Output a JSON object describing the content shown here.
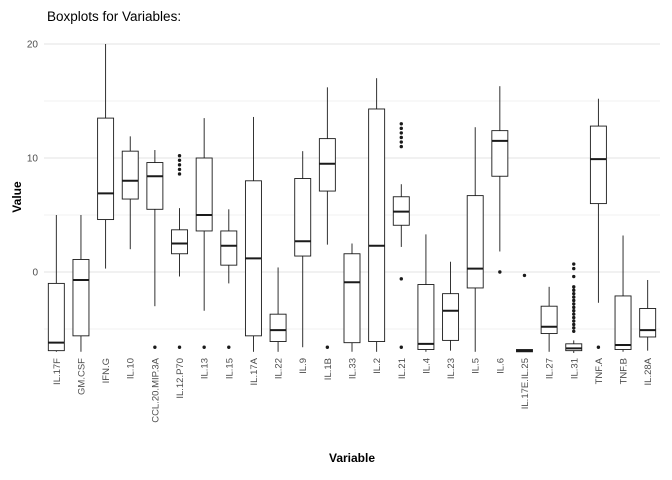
{
  "title": "Boxplots for Variables:",
  "colors": {
    "background": "#ffffff",
    "box": "#1a1a1a",
    "box_fill": "#ffffff",
    "grid_major": "#e3e3e3",
    "grid_minor": "#f1f1f1",
    "axis_text": "#4d4d4d",
    "title_text": "#000000"
  },
  "chart_data": {
    "type": "boxplot",
    "title": "Boxplots for Variables:",
    "xlabel": "Variable",
    "ylabel": "Value",
    "ylim": [
      -7.2,
      20.8
    ],
    "yticks": [
      0,
      10,
      20
    ],
    "minor_gridlines": [
      -5,
      5,
      15
    ],
    "grid": true,
    "legend": "none",
    "categories": [
      "IL.17F",
      "GM.CSF",
      "IFN.G",
      "IL.10",
      "CCL.20.MIP.3A",
      "IL.12.P70",
      "IL.13",
      "IL.15",
      "IL.17A",
      "IL.22",
      "IL.9",
      "IL.1B",
      "IL.33",
      "IL.2",
      "IL.21",
      "IL.4",
      "IL.23",
      "IL.5",
      "IL.6",
      "IL.17E.IL.25",
      "IL.27",
      "IL.31",
      "TNF.A",
      "TNF.B",
      "IL.28A"
    ],
    "boxes": [
      {
        "label": "IL.17F",
        "low": -7.0,
        "q1": -6.9,
        "median": -6.2,
        "q3": -1.0,
        "high": 5.0,
        "outliers": []
      },
      {
        "label": "GM.CSF",
        "low": -7.0,
        "q1": -5.6,
        "median": -0.7,
        "q3": 1.1,
        "high": 5.0,
        "outliers": []
      },
      {
        "label": "IFN.G",
        "low": 0.3,
        "q1": 4.6,
        "median": 6.9,
        "q3": 13.5,
        "high": 20.0,
        "outliers": []
      },
      {
        "label": "IL.10",
        "low": 2.0,
        "q1": 6.4,
        "median": 8.0,
        "q3": 10.6,
        "high": 11.9,
        "outliers": []
      },
      {
        "label": "CCL.20.MIP.3A",
        "low": -3.0,
        "q1": 5.5,
        "median": 8.4,
        "q3": 9.6,
        "high": 10.7,
        "outliers": [
          -6.6
        ]
      },
      {
        "label": "IL.12.P70",
        "low": -0.4,
        "q1": 1.6,
        "median": 2.5,
        "q3": 3.7,
        "high": 5.6,
        "outliers": [
          8.6,
          9.0,
          9.4,
          9.8,
          10.2,
          -6.6
        ]
      },
      {
        "label": "IL.13",
        "low": -3.4,
        "q1": 3.6,
        "median": 5.0,
        "q3": 10.0,
        "high": 13.5,
        "outliers": [
          -6.6
        ]
      },
      {
        "label": "IL.15",
        "low": -1.0,
        "q1": 0.6,
        "median": 2.3,
        "q3": 3.6,
        "high": 5.5,
        "outliers": [
          -6.6
        ]
      },
      {
        "label": "IL.17A",
        "low": -7.0,
        "q1": -5.6,
        "median": 1.2,
        "q3": 8.0,
        "high": 13.6,
        "outliers": []
      },
      {
        "label": "IL.22",
        "low": -7.0,
        "q1": -6.1,
        "median": -5.1,
        "q3": -3.7,
        "high": 0.4,
        "outliers": []
      },
      {
        "label": "IL.9",
        "low": -6.6,
        "q1": 1.4,
        "median": 2.7,
        "q3": 8.2,
        "high": 10.6,
        "outliers": []
      },
      {
        "label": "IL.1B",
        "low": 2.4,
        "q1": 7.1,
        "median": 9.5,
        "q3": 11.7,
        "high": 16.2,
        "outliers": [
          -6.6
        ]
      },
      {
        "label": "IL.33",
        "low": -7.0,
        "q1": -6.2,
        "median": -0.9,
        "q3": 1.6,
        "high": 2.5,
        "outliers": []
      },
      {
        "label": "IL.2",
        "low": -7.0,
        "q1": -6.1,
        "median": 2.3,
        "q3": 14.3,
        "high": 17.0,
        "outliers": []
      },
      {
        "label": "IL.21",
        "low": 2.2,
        "q1": 4.1,
        "median": 5.3,
        "q3": 6.6,
        "high": 7.7,
        "outliers": [
          11.0,
          11.4,
          11.8,
          12.2,
          12.6,
          13.0,
          -0.6,
          -6.6
        ]
      },
      {
        "label": "IL.4",
        "low": -7.0,
        "q1": -6.8,
        "median": -6.3,
        "q3": -1.1,
        "high": 3.3,
        "outliers": []
      },
      {
        "label": "IL.23",
        "low": -6.9,
        "q1": -6.0,
        "median": -3.4,
        "q3": -1.9,
        "high": 0.9,
        "outliers": []
      },
      {
        "label": "IL.5",
        "low": -7.0,
        "q1": -1.4,
        "median": 0.3,
        "q3": 6.7,
        "high": 12.7,
        "outliers": []
      },
      {
        "label": "IL.6",
        "low": 1.8,
        "q1": 8.4,
        "median": 11.5,
        "q3": 12.4,
        "high": 16.3,
        "outliers": [
          0.0
        ]
      },
      {
        "label": "IL.17E.IL.25",
        "low": -7.0,
        "q1": -7.0,
        "median": -6.9,
        "q3": -6.8,
        "high": -6.8,
        "outliers": [
          -0.3
        ]
      },
      {
        "label": "IL.27",
        "low": -7.0,
        "q1": -5.4,
        "median": -4.8,
        "q3": -3.0,
        "high": -1.3,
        "outliers": []
      },
      {
        "label": "IL.31",
        "low": -7.1,
        "q1": -6.9,
        "median": -6.7,
        "q3": -6.3,
        "high": -6.0,
        "outliers": [
          -5.2,
          -4.9,
          -4.6,
          -4.3,
          -4.0,
          -3.7,
          -3.4,
          -3.1,
          -2.8,
          -2.5,
          -2.2,
          -1.9,
          -1.6,
          -1.3,
          -0.4,
          0.3,
          0.7
        ]
      },
      {
        "label": "TNF.A",
        "low": -2.7,
        "q1": 6.0,
        "median": 9.9,
        "q3": 12.8,
        "high": 15.2,
        "outliers": [
          -6.6
        ]
      },
      {
        "label": "TNF.B",
        "low": -7.0,
        "q1": -6.8,
        "median": -6.4,
        "q3": -2.1,
        "high": 3.2,
        "outliers": []
      },
      {
        "label": "IL.28A",
        "low": -6.9,
        "q1": -5.7,
        "median": -5.1,
        "q3": -3.2,
        "high": -0.7,
        "outliers": []
      }
    ]
  }
}
